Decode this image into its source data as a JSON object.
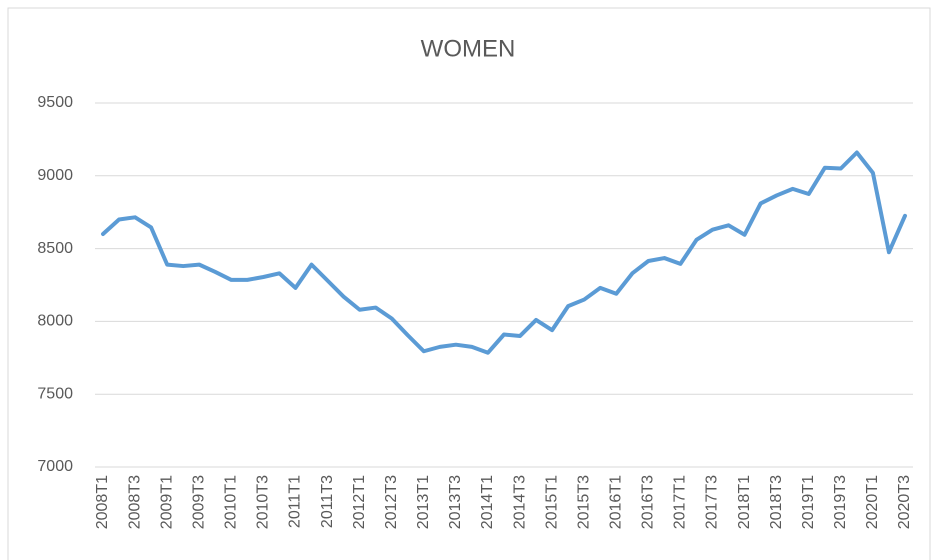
{
  "chart_data": {
    "type": "line",
    "title": "WOMEN",
    "categories": [
      "2008T1",
      null,
      "2008T3",
      null,
      "2009T1",
      null,
      "2009T3",
      null,
      "2010T1",
      null,
      "2010T3",
      null,
      "2011T1",
      null,
      "2011T3",
      null,
      "2012T1",
      null,
      "2012T3",
      null,
      "2013T1",
      null,
      "2013T3",
      null,
      "2014T1",
      null,
      "2014T3",
      null,
      "2015T1",
      null,
      "2015T3",
      null,
      "2016T1",
      null,
      "2016T3",
      null,
      "2017T1",
      null,
      "2017T3",
      null,
      "2018T1",
      null,
      "2018T3",
      null,
      "2019T1",
      null,
      "2019T3",
      null,
      "2020T1",
      null,
      "2020T3"
    ],
    "series": [
      {
        "name": "WOMEN",
        "color": "#5b9bd5",
        "values": [
          8600,
          8700,
          8715,
          8645,
          8390,
          8380,
          8390,
          8340,
          8285,
          8285,
          8305,
          8330,
          8230,
          8390,
          8280,
          8170,
          8080,
          8095,
          8020,
          7905,
          7795,
          7825,
          7840,
          7825,
          7785,
          7910,
          7900,
          8010,
          7940,
          8105,
          8150,
          8230,
          8190,
          8330,
          8415,
          8435,
          8395,
          8560,
          8630,
          8660,
          8595,
          8810,
          8865,
          8910,
          8875,
          9055,
          9050,
          9160,
          9020,
          8475,
          8725
        ]
      }
    ],
    "ylim": [
      7000,
      9500
    ],
    "yticks": [
      7000,
      7500,
      8000,
      8500,
      9000,
      9500
    ],
    "grid": true
  }
}
